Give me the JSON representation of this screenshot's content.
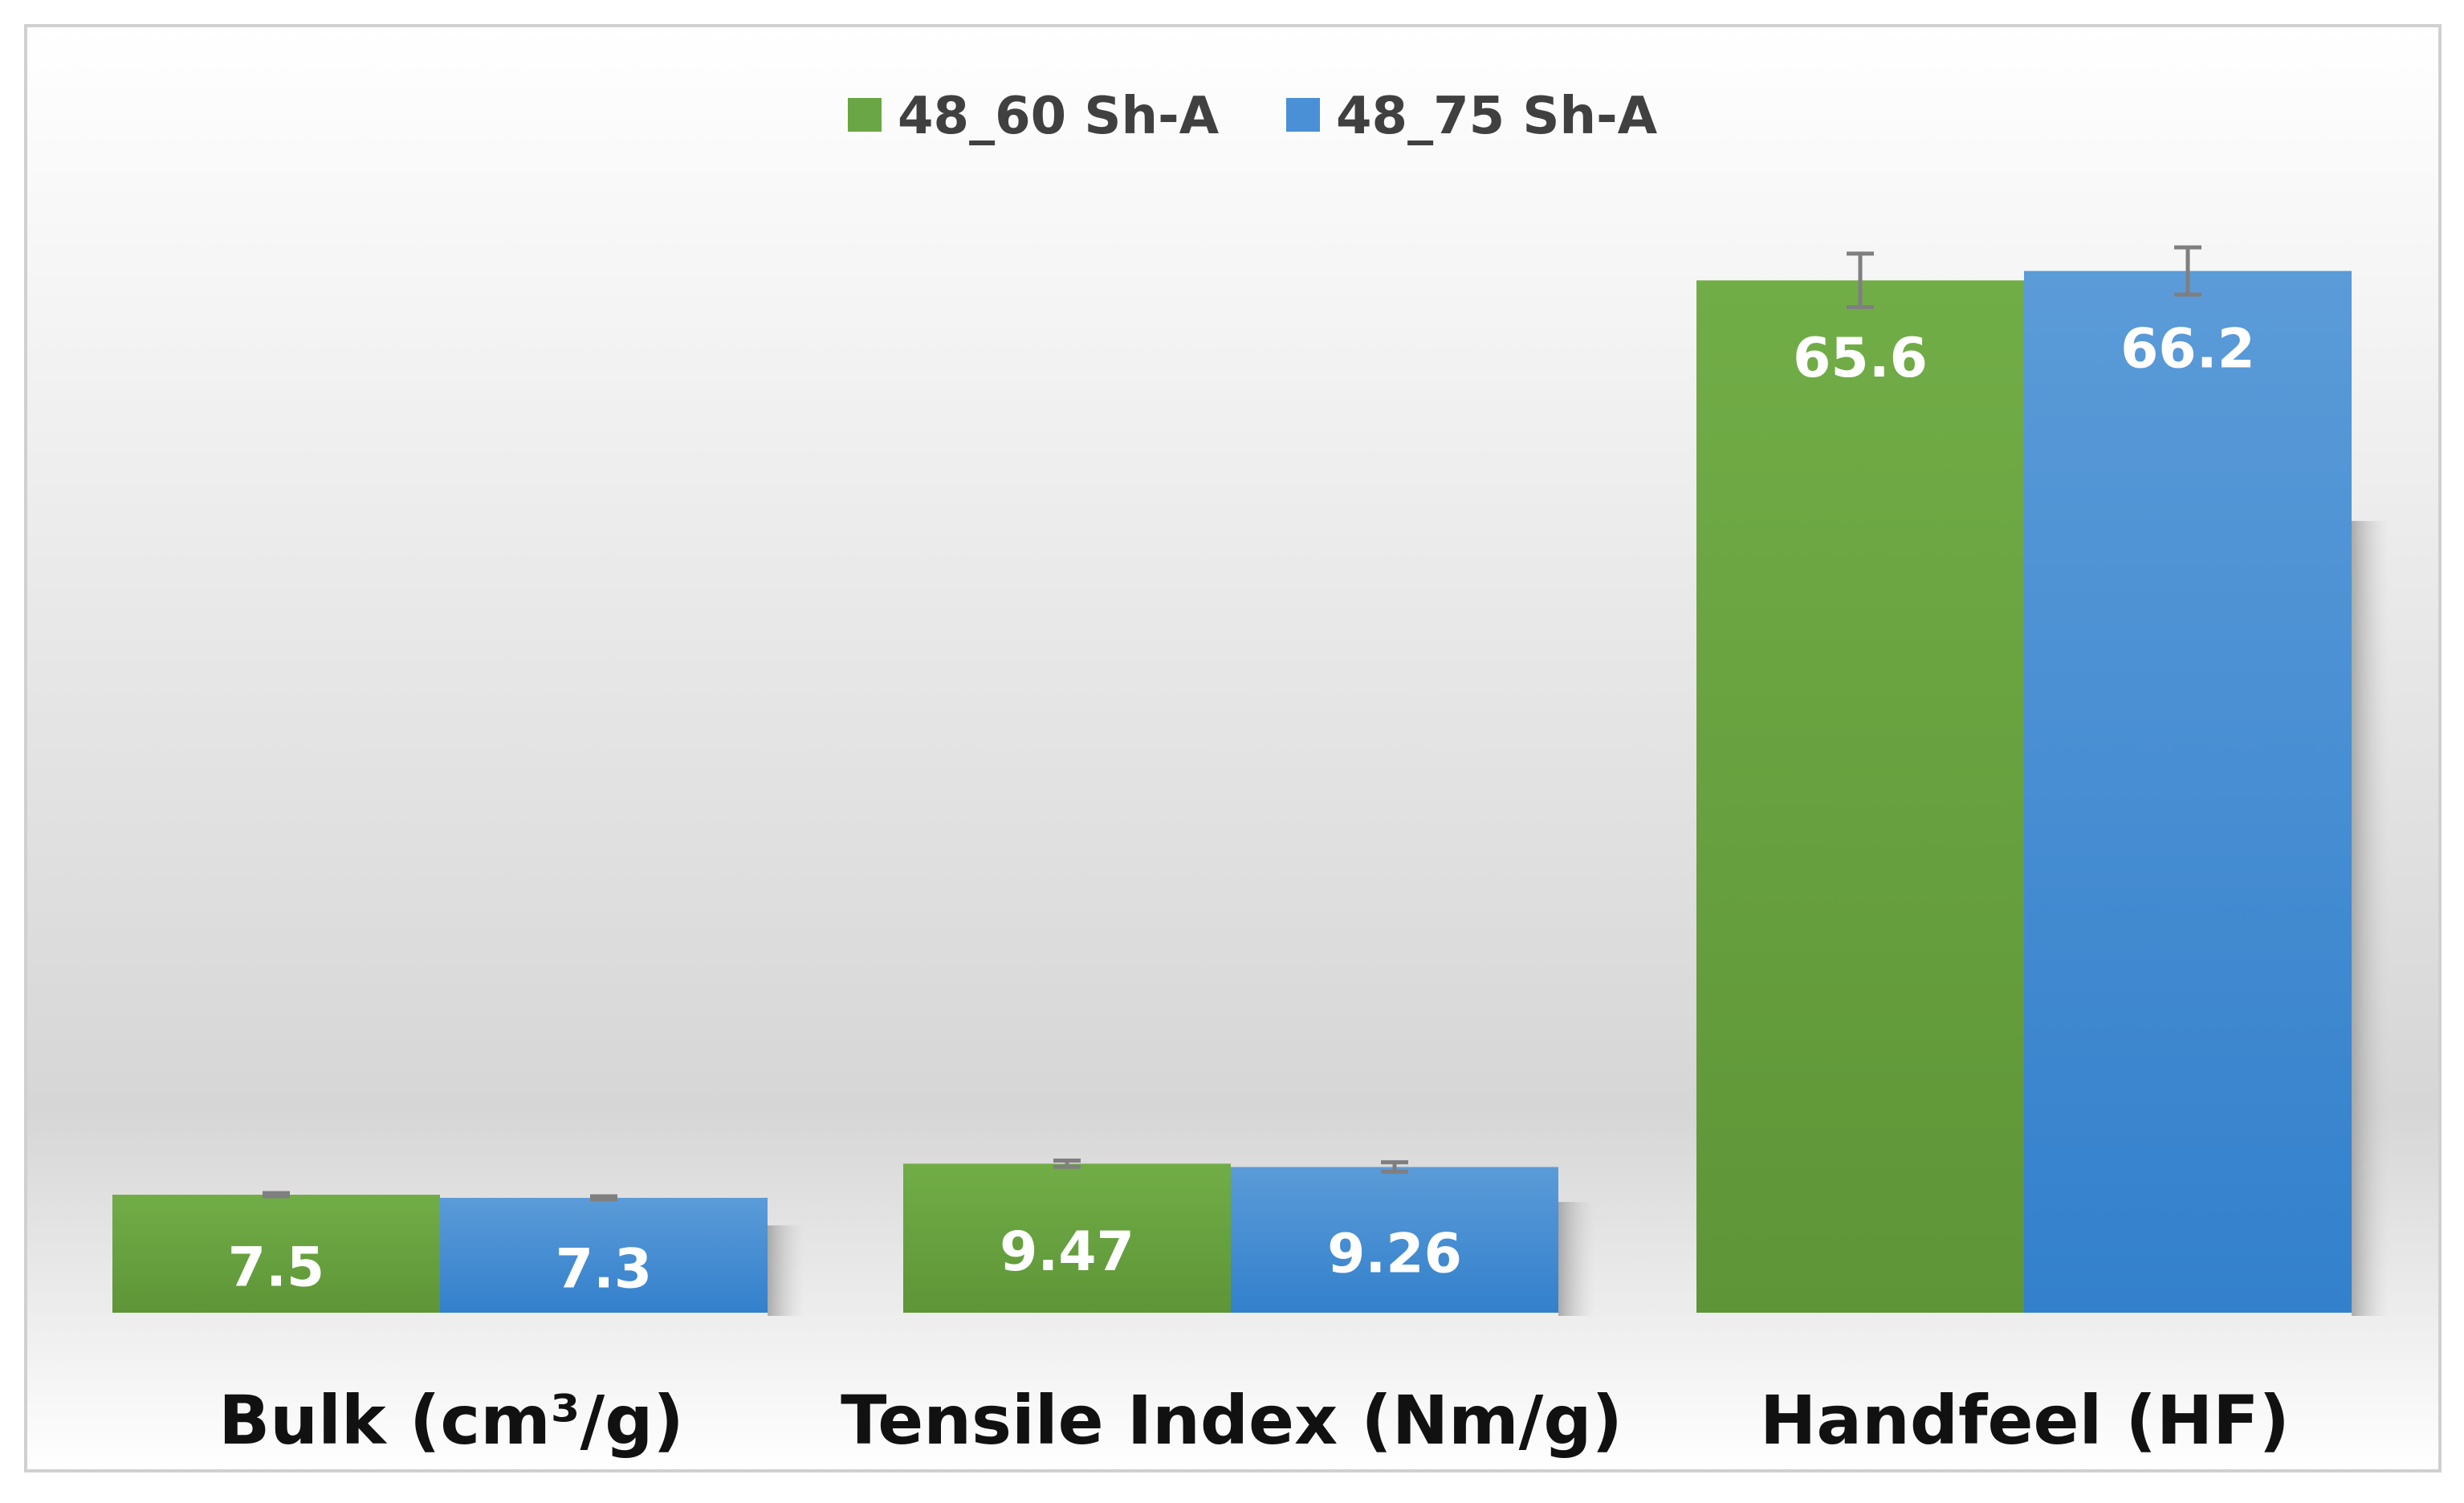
{
  "chart_data": {
    "type": "bar",
    "categories": [
      "Bulk (cm³/g)",
      "Tensile Index (Nm/g)",
      "Handfeel (HF)"
    ],
    "series": [
      {
        "name": "48_60 Sh-A",
        "values": [
          7.5,
          9.47,
          65.6
        ],
        "value_labels": [
          "7.5",
          "9.47",
          "65.6"
        ],
        "errors": [
          0.1,
          0.2,
          1.7
        ],
        "color": "#6aa645"
      },
      {
        "name": "48_75 Sh-A",
        "values": [
          7.3,
          9.26,
          66.2
        ],
        "value_labels": [
          "7.3",
          "9.26",
          "66.2"
        ],
        "errors": [
          0.1,
          0.3,
          1.5
        ],
        "color": "#4a90d6"
      }
    ],
    "ylim": [
      0,
      72
    ],
    "legend_position": "top-center",
    "grid": false,
    "title": "",
    "xlabel": "",
    "ylabel": ""
  }
}
